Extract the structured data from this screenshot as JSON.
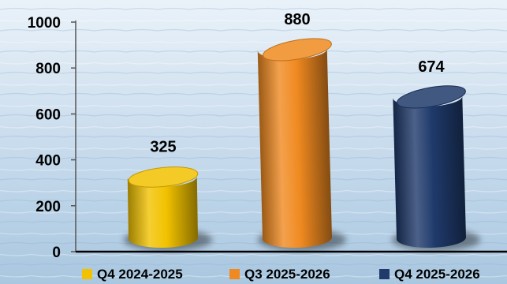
{
  "chart_data": {
    "type": "bar",
    "style": "3d-cylinder",
    "categories": [
      "Q4 2024-2025",
      "Q3 2025-2026",
      "Q4 2025-2026"
    ],
    "values": [
      325,
      880,
      674
    ],
    "data_labels": [
      "325",
      "880",
      "674"
    ],
    "colors": [
      "#f2c200",
      "#f08a20",
      "#1f3a6b"
    ],
    "ylim": [
      0,
      1000
    ],
    "yticks": [
      0,
      200,
      400,
      600,
      800,
      1000
    ],
    "ytick_labels": [
      "0",
      "200",
      "400",
      "600",
      "800",
      "1000"
    ],
    "grid": false,
    "legend_position": "bottom",
    "legend": [
      "Q4 2024-2025",
      "Q3 2025-2026",
      "Q4 2025-2026"
    ]
  }
}
